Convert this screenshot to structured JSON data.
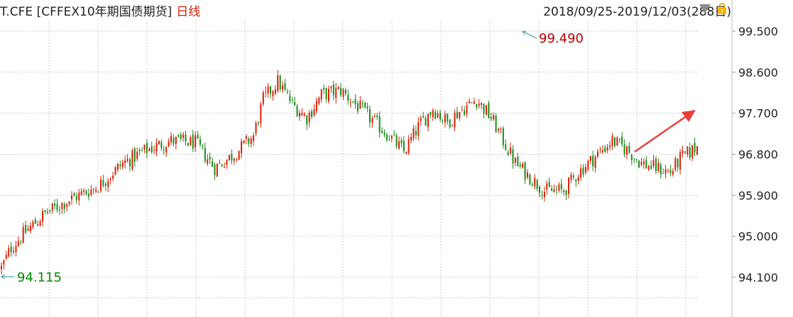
{
  "header": {
    "symbol": "T.CFE [CFFEX10年期国债期货]",
    "period": "日线",
    "range": "2018/09/25-2019/12/03(288日)"
  },
  "icons": {
    "dropdown": "triangle-down-icon",
    "lock": "lock-icon"
  },
  "colors": {
    "up": "#d81e06",
    "down": "#1a8c1a",
    "max": "#c00000",
    "min": "#009000",
    "arrow": "#e8403c",
    "grid": "#cfcfcf"
  },
  "chart_data": {
    "type": "candlestick",
    "title": "T.CFE [CFFEX10年期国债期货]",
    "period": "日线",
    "date_range": [
      "2018/09/25",
      "2019/12/03"
    ],
    "num_bars": 288,
    "ylim": [
      93.6,
      100.0
    ],
    "y_ticks": [
      "99.500",
      "98.600",
      "97.700",
      "96.800",
      "95.900",
      "95.000",
      "94.100"
    ],
    "grid": true,
    "annotations": {
      "max": {
        "label": "99.490",
        "value": 99.49
      },
      "min": {
        "label": "94.115",
        "value": 94.115
      }
    },
    "close_path": [
      [
        0,
        94.3
      ],
      [
        4,
        94.75
      ],
      [
        10,
        95.1
      ],
      [
        18,
        95.5
      ],
      [
        28,
        95.8
      ],
      [
        40,
        96.1
      ],
      [
        50,
        96.6
      ],
      [
        60,
        96.9
      ],
      [
        70,
        97.1
      ],
      [
        80,
        97.05
      ],
      [
        88,
        96.5
      ],
      [
        96,
        96.8
      ],
      [
        104,
        97.2
      ],
      [
        108,
        98.0
      ],
      [
        114,
        98.4
      ],
      [
        120,
        97.9
      ],
      [
        126,
        97.6
      ],
      [
        132,
        98.1
      ],
      [
        140,
        98.2
      ],
      [
        148,
        97.8
      ],
      [
        154,
        97.5
      ],
      [
        160,
        97.2
      ],
      [
        166,
        96.85
      ],
      [
        172,
        97.4
      ],
      [
        178,
        97.8
      ],
      [
        184,
        97.5
      ],
      [
        188,
        97.7
      ],
      [
        196,
        98.0
      ],
      [
        202,
        97.6
      ],
      [
        206,
        97.2
      ],
      [
        212,
        96.6
      ],
      [
        218,
        96.3
      ],
      [
        224,
        96.0
      ],
      [
        232,
        96.0
      ],
      [
        238,
        96.4
      ],
      [
        246,
        96.8
      ],
      [
        252,
        97.1
      ],
      [
        258,
        96.9
      ],
      [
        264,
        96.6
      ],
      [
        270,
        96.5
      ],
      [
        276,
        96.4
      ],
      [
        280,
        96.7
      ],
      [
        288,
        97.0
      ]
    ]
  }
}
